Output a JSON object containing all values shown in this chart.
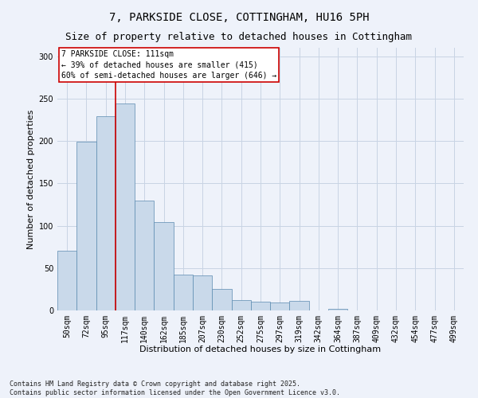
{
  "title": "7, PARKSIDE CLOSE, COTTINGHAM, HU16 5PH",
  "subtitle": "Size of property relative to detached houses in Cottingham",
  "xlabel": "Distribution of detached houses by size in Cottingham",
  "ylabel": "Number of detached properties",
  "categories": [
    "50sqm",
    "72sqm",
    "95sqm",
    "117sqm",
    "140sqm",
    "162sqm",
    "185sqm",
    "207sqm",
    "230sqm",
    "252sqm",
    "275sqm",
    "297sqm",
    "319sqm",
    "342sqm",
    "364sqm",
    "387sqm",
    "409sqm",
    "432sqm",
    "454sqm",
    "477sqm",
    "499sqm"
  ],
  "values": [
    70,
    199,
    229,
    244,
    130,
    104,
    42,
    41,
    25,
    12,
    10,
    9,
    11,
    0,
    2,
    0,
    0,
    0,
    0,
    0,
    0
  ],
  "bar_color": "#c9d9ea",
  "bar_edge_color": "#5a8ab0",
  "grid_color": "#c8d4e4",
  "background_color": "#eef2fa",
  "vline_color": "#cc0000",
  "vline_x_index": 3,
  "annotation_text": "7 PARKSIDE CLOSE: 111sqm\n← 39% of detached houses are smaller (415)\n60% of semi-detached houses are larger (646) →",
  "annotation_box_color": "#ffffff",
  "annotation_box_edge": "#cc0000",
  "ylim": [
    0,
    310
  ],
  "yticks": [
    0,
    50,
    100,
    150,
    200,
    250,
    300
  ],
  "footer": "Contains HM Land Registry data © Crown copyright and database right 2025.\nContains public sector information licensed under the Open Government Licence v3.0.",
  "title_fontsize": 10,
  "subtitle_fontsize": 9,
  "axis_label_fontsize": 8,
  "tick_fontsize": 7,
  "footer_fontsize": 6,
  "annotation_fontsize": 7
}
